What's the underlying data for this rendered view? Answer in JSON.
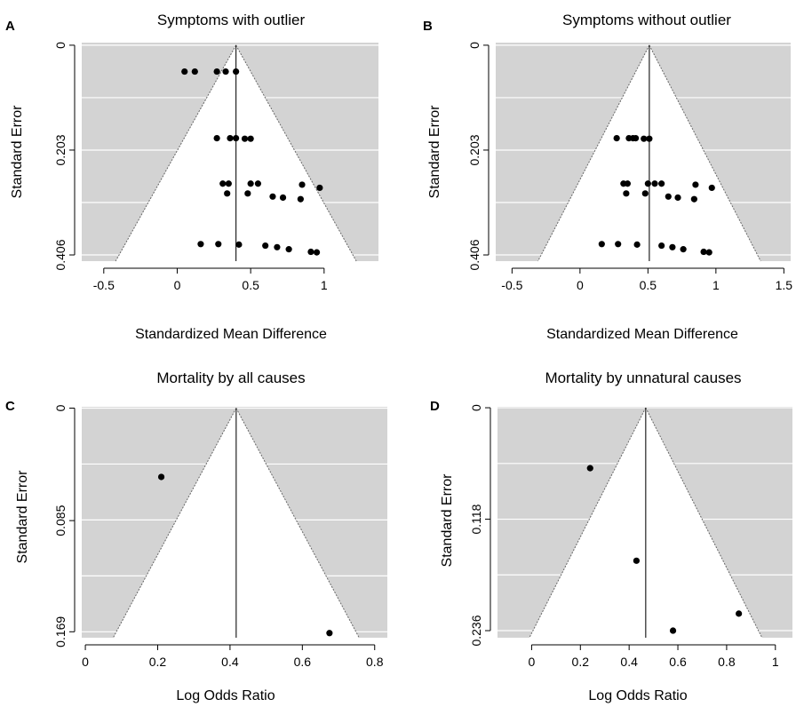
{
  "chart_data": [
    {
      "type": "scatter",
      "panel_label": "A",
      "title": "Symptoms with outlier",
      "xlabel": "Standardized Mean Difference",
      "ylabel": "Standard Error",
      "x_ticks": [
        "-0.5",
        "0",
        "0.5",
        "1"
      ],
      "x_tick_values": [
        -0.5,
        0,
        0.5,
        1
      ],
      "y_ticks": [
        "0",
        "0.203",
        "0.406"
      ],
      "y_tick_values": [
        0,
        0.203,
        0.406
      ],
      "xlim": [
        -0.65,
        1.37
      ],
      "ylim": [
        0.418,
        -0.005
      ],
      "y_reversed": true,
      "summary_estimate": 0.4,
      "funnel_bottom_se": 0.418,
      "colors": {
        "background": "#d3d3d3",
        "funnel": "#ffffff",
        "points": "#000000",
        "gridlines": "#ffffff"
      },
      "points": [
        {
          "x": 0.05,
          "y": 0.051
        },
        {
          "x": 0.12,
          "y": 0.051
        },
        {
          "x": 0.27,
          "y": 0.051
        },
        {
          "x": 0.33,
          "y": 0.051
        },
        {
          "x": 0.4,
          "y": 0.051
        },
        {
          "x": 0.27,
          "y": 0.18
        },
        {
          "x": 0.36,
          "y": 0.18
        },
        {
          "x": 0.4,
          "y": 0.18
        },
        {
          "x": 0.46,
          "y": 0.181
        },
        {
          "x": 0.5,
          "y": 0.181
        },
        {
          "x": 0.31,
          "y": 0.268
        },
        {
          "x": 0.35,
          "y": 0.268
        },
        {
          "x": 0.5,
          "y": 0.268
        },
        {
          "x": 0.55,
          "y": 0.268
        },
        {
          "x": 0.85,
          "y": 0.27
        },
        {
          "x": 0.97,
          "y": 0.276
        },
        {
          "x": 0.34,
          "y": 0.287
        },
        {
          "x": 0.48,
          "y": 0.287
        },
        {
          "x": 0.65,
          "y": 0.293
        },
        {
          "x": 0.72,
          "y": 0.295
        },
        {
          "x": 0.84,
          "y": 0.298
        },
        {
          "x": 0.16,
          "y": 0.385
        },
        {
          "x": 0.28,
          "y": 0.385
        },
        {
          "x": 0.42,
          "y": 0.386
        },
        {
          "x": 0.6,
          "y": 0.388
        },
        {
          "x": 0.68,
          "y": 0.391
        },
        {
          "x": 0.76,
          "y": 0.395
        },
        {
          "x": 0.91,
          "y": 0.4
        },
        {
          "x": 0.95,
          "y": 0.401
        }
      ]
    },
    {
      "type": "scatter",
      "panel_label": "B",
      "title": "Symptoms without outlier",
      "xlabel": "Standardized Mean Difference",
      "ylabel": "Standard Error",
      "x_ticks": [
        "-0.5",
        "0",
        "0.5",
        "1",
        "1.5"
      ],
      "x_tick_values": [
        -0.5,
        0,
        0.5,
        1,
        1.5
      ],
      "y_ticks": [
        "0",
        "0.203",
        "0.406"
      ],
      "y_tick_values": [
        0,
        0.203,
        0.406
      ],
      "xlim": [
        -0.62,
        1.55
      ],
      "ylim": [
        0.418,
        -0.005
      ],
      "y_reversed": true,
      "summary_estimate": 0.51,
      "funnel_bottom_se": 0.418,
      "colors": {
        "background": "#d3d3d3",
        "funnel": "#ffffff",
        "points": "#000000",
        "gridlines": "#ffffff"
      },
      "points": [
        {
          "x": 0.27,
          "y": 0.18
        },
        {
          "x": 0.36,
          "y": 0.18
        },
        {
          "x": 0.39,
          "y": 0.18
        },
        {
          "x": 0.41,
          "y": 0.18
        },
        {
          "x": 0.47,
          "y": 0.181
        },
        {
          "x": 0.51,
          "y": 0.181
        },
        {
          "x": 0.32,
          "y": 0.268
        },
        {
          "x": 0.35,
          "y": 0.268
        },
        {
          "x": 0.5,
          "y": 0.268
        },
        {
          "x": 0.55,
          "y": 0.268
        },
        {
          "x": 0.6,
          "y": 0.268
        },
        {
          "x": 0.85,
          "y": 0.27
        },
        {
          "x": 0.97,
          "y": 0.276
        },
        {
          "x": 0.34,
          "y": 0.287
        },
        {
          "x": 0.48,
          "y": 0.287
        },
        {
          "x": 0.65,
          "y": 0.293
        },
        {
          "x": 0.72,
          "y": 0.295
        },
        {
          "x": 0.84,
          "y": 0.298
        },
        {
          "x": 0.16,
          "y": 0.385
        },
        {
          "x": 0.28,
          "y": 0.385
        },
        {
          "x": 0.42,
          "y": 0.386
        },
        {
          "x": 0.6,
          "y": 0.388
        },
        {
          "x": 0.68,
          "y": 0.391
        },
        {
          "x": 0.76,
          "y": 0.395
        },
        {
          "x": 0.91,
          "y": 0.4
        },
        {
          "x": 0.95,
          "y": 0.401
        }
      ]
    },
    {
      "type": "scatter",
      "panel_label": "C",
      "title": "Mortality by all causes",
      "xlabel": "Log Odds Ratio",
      "ylabel": "Standard Error",
      "x_ticks": [
        "0",
        "0.2",
        "0.4",
        "0.6",
        "0.8"
      ],
      "x_tick_values": [
        0,
        0.2,
        0.4,
        0.6,
        0.8
      ],
      "y_ticks": [
        "0",
        "0.085",
        "0.169"
      ],
      "y_tick_values": [
        0,
        0.085,
        0.169
      ],
      "xlim": [
        -0.01,
        0.835
      ],
      "ylim": [
        0.1735,
        -0.001
      ],
      "y_reversed": true,
      "summary_estimate": 0.417,
      "funnel_bottom_se": 0.1735,
      "colors": {
        "background": "#d3d3d3",
        "funnel": "#ffffff",
        "points": "#000000",
        "gridlines": "#ffffff"
      },
      "points": [
        {
          "x": 0.21,
          "y": 0.052
        },
        {
          "x": 0.675,
          "y": 0.17
        }
      ]
    },
    {
      "type": "scatter",
      "panel_label": "D",
      "title": "Mortality by unnatural causes",
      "xlabel": "Log Odds Ratio",
      "ylabel": "Standard Error",
      "x_ticks": [
        "0",
        "0.2",
        "0.4",
        "0.6",
        "0.8",
        "1"
      ],
      "x_tick_values": [
        0,
        0.2,
        0.4,
        0.6,
        0.8,
        1
      ],
      "y_ticks": [
        "0",
        "0.118",
        "0.236"
      ],
      "y_tick_values": [
        0,
        0.118,
        0.236
      ],
      "xlim": [
        -0.14,
        1.07
      ],
      "ylim": [
        0.2435,
        -0.001
      ],
      "y_reversed": true,
      "summary_estimate": 0.468,
      "funnel_bottom_se": 0.2435,
      "colors": {
        "background": "#d3d3d3",
        "funnel": "#ffffff",
        "points": "#000000",
        "gridlines": "#ffffff"
      },
      "points": [
        {
          "x": 0.24,
          "y": 0.064
        },
        {
          "x": 0.43,
          "y": 0.162
        },
        {
          "x": 0.85,
          "y": 0.218
        },
        {
          "x": 0.58,
          "y": 0.236
        }
      ]
    }
  ]
}
